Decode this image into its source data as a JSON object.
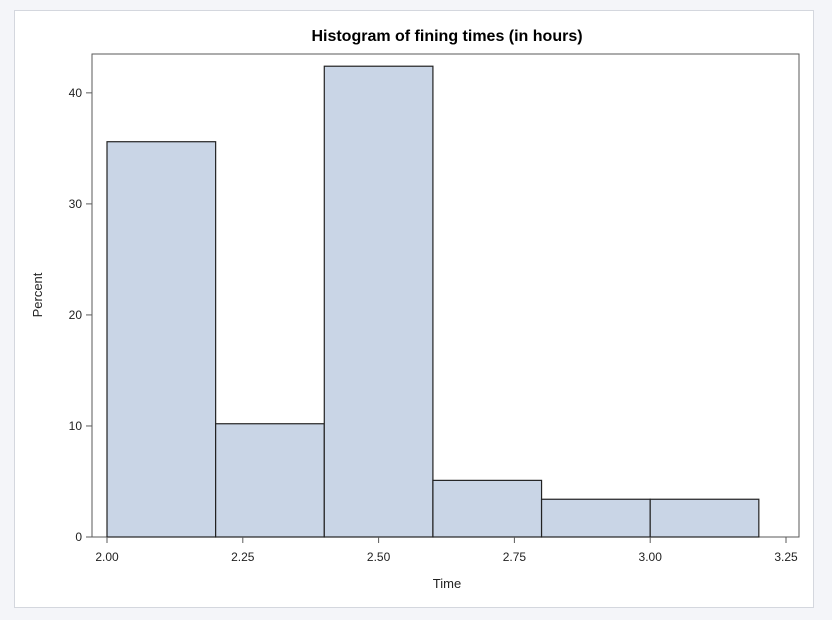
{
  "chart_data": {
    "type": "bar",
    "title": "Histogram of fining times (in hours)",
    "xlabel": "Time",
    "ylabel": "Percent",
    "bins": [
      {
        "start": 2.0,
        "end": 2.2,
        "value": 35.6
      },
      {
        "start": 2.2,
        "end": 2.4,
        "value": 10.2
      },
      {
        "start": 2.4,
        "end": 2.6,
        "value": 42.4
      },
      {
        "start": 2.6,
        "end": 2.8,
        "value": 5.1
      },
      {
        "start": 2.8,
        "end": 3.0,
        "value": 3.4
      },
      {
        "start": 3.0,
        "end": 3.2,
        "value": 3.4
      }
    ],
    "xlim": [
      2.0,
      3.25
    ],
    "ylim": [
      0,
      43.5
    ],
    "xticks": [
      "2.00",
      "2.25",
      "2.50",
      "2.75",
      "3.00",
      "3.25"
    ],
    "yticks": [
      "0",
      "10",
      "20",
      "30",
      "40"
    ],
    "grid": false,
    "colors": {
      "bar_fill": "#c9d5e6",
      "bar_stroke": "#222222",
      "axis": "#5a5a5a"
    }
  }
}
